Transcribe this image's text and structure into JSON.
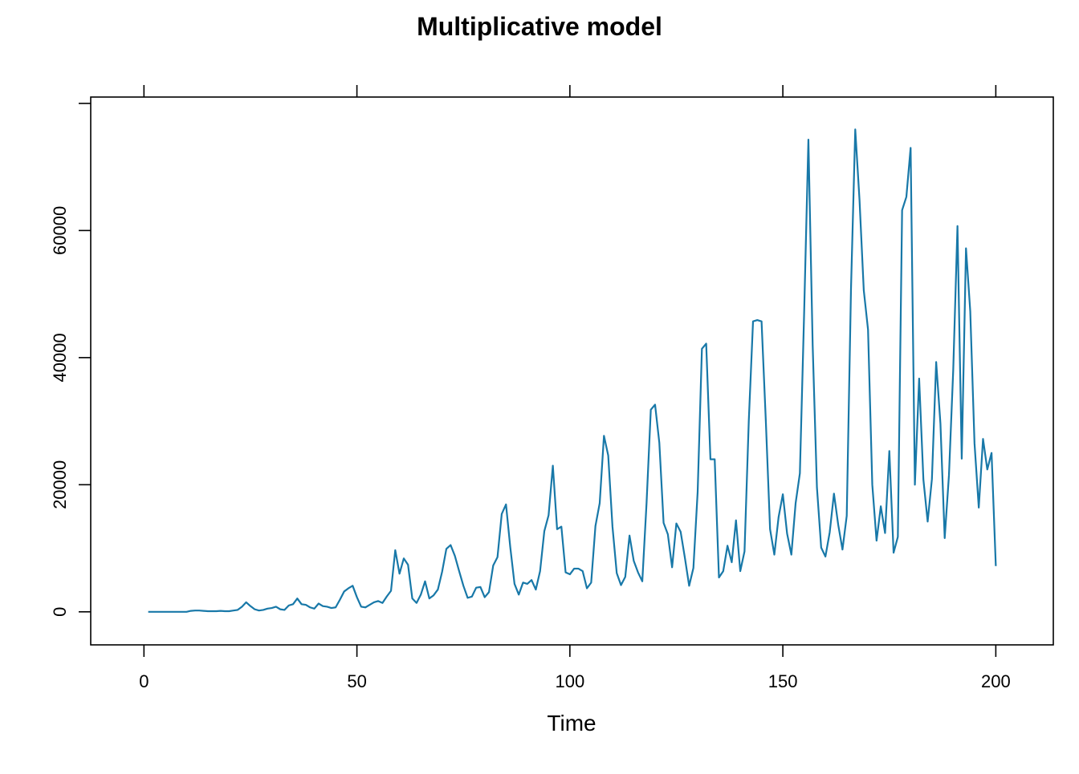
{
  "chart_data": {
    "type": "line",
    "title": "Multiplicative model",
    "xlabel": "Time",
    "ylabel": "",
    "xlim": [
      -12.5,
      213.5
    ],
    "ylim": [
      -5200,
      81000
    ],
    "xticks": [
      0,
      50,
      100,
      150,
      200
    ],
    "xtick_labels": [
      "0",
      "50",
      "100",
      "150",
      "200"
    ],
    "yticks": [
      0,
      20000,
      40000,
      60000
    ],
    "ytick_labels": [
      "0",
      "20000",
      "40000",
      "60000"
    ],
    "grid": false,
    "legend": "none",
    "colors": {
      "line": "#1878a8",
      "axis": "#000000",
      "background": "#ffffff"
    },
    "series": [
      {
        "x": [
          1,
          2,
          3,
          4,
          5,
          6,
          7,
          8,
          9,
          10,
          11,
          12,
          13,
          14,
          15,
          16,
          17,
          18,
          19,
          20,
          21,
          22,
          23,
          24,
          25,
          26,
          27,
          28,
          29,
          30,
          31,
          32,
          33,
          34,
          35,
          36,
          37,
          38,
          39,
          40,
          41,
          42,
          43,
          44,
          45,
          46,
          47,
          48,
          49,
          50,
          51,
          52,
          53,
          54,
          55,
          56,
          57,
          58,
          59,
          60,
          61,
          62,
          63,
          64,
          65,
          66,
          67,
          68,
          69,
          70,
          71,
          72,
          73,
          74,
          75,
          76,
          77,
          78,
          79,
          80,
          81,
          82,
          83,
          84,
          85,
          86,
          87,
          88,
          89,
          90,
          91,
          92,
          93,
          94,
          95,
          96,
          97,
          98,
          99,
          100,
          101,
          102,
          103,
          104,
          105,
          106,
          107,
          108,
          109,
          110,
          111,
          112,
          113,
          114,
          115,
          116,
          117,
          118,
          119,
          120,
          121,
          122,
          123,
          124,
          125,
          126,
          127,
          128,
          129,
          130,
          131,
          132,
          133,
          134,
          135,
          136,
          137,
          138,
          139,
          140,
          141,
          142,
          143,
          144,
          145,
          146,
          147,
          148,
          149,
          150,
          151,
          152,
          153,
          154,
          155,
          156,
          157,
          158,
          159,
          160,
          161,
          162,
          163,
          164,
          165,
          166,
          167,
          168,
          169,
          170,
          171,
          172,
          173,
          174,
          175,
          176,
          177,
          178,
          179,
          180,
          181,
          182,
          183,
          184,
          185,
          186,
          187,
          188,
          189,
          190,
          191,
          192,
          193,
          194,
          195,
          196,
          197,
          198,
          199,
          200
        ],
        "values": [
          0,
          0,
          0,
          0,
          0,
          0,
          0,
          0,
          0,
          0,
          150,
          200,
          200,
          150,
          100,
          100,
          100,
          150,
          100,
          100,
          200,
          300,
          800,
          1500,
          900,
          400,
          200,
          300,
          500,
          600,
          800,
          400,
          300,
          1000,
          1200,
          2100,
          1200,
          1100,
          700,
          500,
          1300,
          900,
          800,
          600,
          700,
          1900,
          3200,
          3700,
          4100,
          2300,
          800,
          700,
          1100,
          1500,
          1700,
          1400,
          2400,
          3300,
          9700,
          6000,
          8400,
          7400,
          2100,
          1400,
          2700,
          4800,
          2100,
          2600,
          3500,
          6300,
          9900,
          10500,
          8800,
          6400,
          4100,
          2200,
          2400,
          3800,
          3900,
          2300,
          3100,
          7300,
          8600,
          15400,
          16900,
          10200,
          4400,
          2700,
          4600,
          4400,
          5000,
          3500,
          6400,
          12700,
          15200,
          23000,
          13000,
          13400,
          6200,
          5900,
          6800,
          6800,
          6400,
          3700,
          4600,
          13500,
          17100,
          27700,
          24600,
          13400,
          6100,
          4200,
          5500,
          12000,
          8000,
          6200,
          4800,
          17100,
          31800,
          32600,
          26600,
          14000,
          12200,
          7000,
          13900,
          12600,
          8500,
          4100,
          6900,
          18900,
          41400,
          42200,
          24000,
          24000,
          5400,
          6400,
          10400,
          7800,
          14400,
          6400,
          9500,
          30000,
          45700,
          45900,
          45700,
          30100,
          13000,
          9000,
          14900,
          18500,
          12300,
          9000,
          17100,
          21800,
          47100,
          74300,
          42000,
          19600,
          10100,
          8700,
          12500,
          18600,
          13700,
          9800,
          15100,
          50800,
          75900,
          64800,
          50600,
          44400,
          20000,
          11200,
          16600,
          12400,
          25300,
          9300,
          11800,
          63200,
          65300,
          73000,
          20000,
          36700,
          20800,
          14200,
          20900,
          39300,
          29600,
          11600,
          21500,
          38000,
          60700,
          24100,
          57200,
          47300,
          26500,
          16400,
          27200,
          22400,
          25000,
          7200
        ]
      }
    ]
  }
}
